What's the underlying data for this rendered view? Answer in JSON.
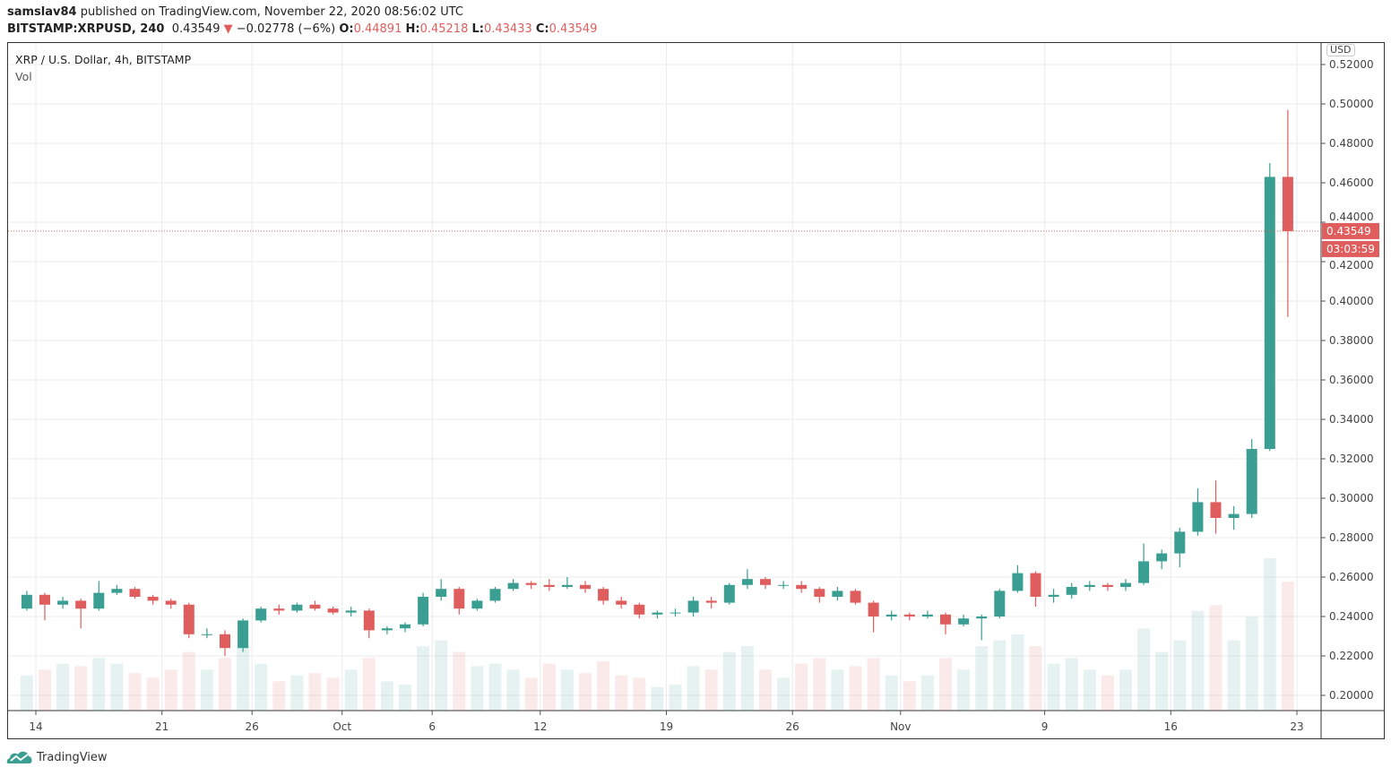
{
  "header": {
    "author": "samslav84",
    "published_text": "published on TradingView.com, November 22, 2020 08:56:02 UTC",
    "symbol": "BITSTAMP:XRPUSD, 240",
    "last": "0.43549",
    "change": "−0.02778 (−6%)",
    "o_label": "O:",
    "o": "0.44891",
    "h_label": "H:",
    "h": "0.45218",
    "l_label": "L:",
    "l": "0.43433",
    "c_label": "C:",
    "c": "0.43549"
  },
  "legend": {
    "title": "XRP / U.S. Dollar, 4h, BITSTAMP",
    "volume_label": "Vol"
  },
  "currency_badge": "USD",
  "current_price_label": "0.43549",
  "countdown_label": "03:03:59",
  "footer": {
    "brand": "TradingView"
  },
  "colors": {
    "up": "#3a9e92",
    "down": "#e05d5d",
    "grid": "#ebebeb"
  },
  "chart_data": {
    "type": "candlestick",
    "interval_shown": "4h",
    "note_resolution": "daily",
    "ylim": [
      0.19,
      0.53
    ],
    "grid": true,
    "price_ticks": [
      "0.20000",
      "0.22000",
      "0.24000",
      "0.26000",
      "0.28000",
      "0.30000",
      "0.32000",
      "0.34000",
      "0.36000",
      "0.38000",
      "0.40000",
      "0.42000",
      "0.44000",
      "0.46000",
      "0.48000",
      "0.50000",
      "0.52000"
    ],
    "time_ticks": [
      {
        "label": "14",
        "date": "2020-09-14"
      },
      {
        "label": "21",
        "date": "2020-09-21"
      },
      {
        "label": "26",
        "date": "2020-09-26"
      },
      {
        "label": "Oct",
        "date": "2020-10-01"
      },
      {
        "label": "6",
        "date": "2020-10-06"
      },
      {
        "label": "12",
        "date": "2020-10-12"
      },
      {
        "label": "19",
        "date": "2020-10-19"
      },
      {
        "label": "26",
        "date": "2020-10-26"
      },
      {
        "label": "Nov",
        "date": "2020-11-01"
      },
      {
        "label": "9",
        "date": "2020-11-09"
      },
      {
        "label": "16",
        "date": "2020-11-16"
      },
      {
        "label": "23",
        "date": "2020-11-23"
      }
    ],
    "start_date": "2020-09-13",
    "ohlcv": [
      [
        0.244,
        0.253,
        0.243,
        0.251,
        30
      ],
      [
        0.251,
        0.252,
        0.238,
        0.246,
        35
      ],
      [
        0.246,
        0.25,
        0.244,
        0.248,
        40
      ],
      [
        0.248,
        0.249,
        0.234,
        0.244,
        38
      ],
      [
        0.244,
        0.258,
        0.243,
        0.252,
        45
      ],
      [
        0.252,
        0.256,
        0.251,
        0.254,
        40
      ],
      [
        0.254,
        0.255,
        0.249,
        0.25,
        32
      ],
      [
        0.25,
        0.251,
        0.246,
        0.248,
        28
      ],
      [
        0.248,
        0.249,
        0.244,
        0.246,
        35
      ],
      [
        0.246,
        0.247,
        0.229,
        0.231,
        50
      ],
      [
        0.231,
        0.234,
        0.229,
        0.231,
        35
      ],
      [
        0.231,
        0.233,
        0.22,
        0.224,
        45
      ],
      [
        0.224,
        0.239,
        0.222,
        0.238,
        55
      ],
      [
        0.238,
        0.245,
        0.237,
        0.244,
        40
      ],
      [
        0.244,
        0.246,
        0.241,
        0.243,
        25
      ],
      [
        0.243,
        0.247,
        0.242,
        0.246,
        30
      ],
      [
        0.246,
        0.248,
        0.243,
        0.244,
        32
      ],
      [
        0.244,
        0.245,
        0.241,
        0.242,
        28
      ],
      [
        0.242,
        0.245,
        0.24,
        0.243,
        35
      ],
      [
        0.243,
        0.244,
        0.229,
        0.233,
        45
      ],
      [
        0.233,
        0.235,
        0.231,
        0.234,
        25
      ],
      [
        0.234,
        0.237,
        0.232,
        0.236,
        22
      ],
      [
        0.236,
        0.252,
        0.235,
        0.25,
        55
      ],
      [
        0.25,
        0.259,
        0.248,
        0.254,
        60
      ],
      [
        0.254,
        0.255,
        0.241,
        0.244,
        50
      ],
      [
        0.244,
        0.249,
        0.243,
        0.248,
        38
      ],
      [
        0.248,
        0.255,
        0.247,
        0.254,
        40
      ],
      [
        0.254,
        0.259,
        0.253,
        0.257,
        35
      ],
      [
        0.257,
        0.258,
        0.254,
        0.256,
        28
      ],
      [
        0.256,
        0.259,
        0.253,
        0.255,
        40
      ],
      [
        0.255,
        0.26,
        0.254,
        0.256,
        35
      ],
      [
        0.256,
        0.258,
        0.252,
        0.254,
        32
      ],
      [
        0.254,
        0.255,
        0.246,
        0.248,
        42
      ],
      [
        0.248,
        0.25,
        0.244,
        0.246,
        30
      ],
      [
        0.246,
        0.247,
        0.239,
        0.241,
        28
      ],
      [
        0.241,
        0.243,
        0.239,
        0.242,
        20
      ],
      [
        0.242,
        0.244,
        0.24,
        0.242,
        22
      ],
      [
        0.242,
        0.25,
        0.24,
        0.248,
        38
      ],
      [
        0.248,
        0.25,
        0.244,
        0.247,
        35
      ],
      [
        0.247,
        0.257,
        0.246,
        0.256,
        50
      ],
      [
        0.256,
        0.264,
        0.254,
        0.259,
        55
      ],
      [
        0.259,
        0.26,
        0.254,
        0.256,
        35
      ],
      [
        0.256,
        0.258,
        0.254,
        0.256,
        28
      ],
      [
        0.256,
        0.258,
        0.252,
        0.254,
        40
      ],
      [
        0.254,
        0.255,
        0.247,
        0.25,
        45
      ],
      [
        0.25,
        0.255,
        0.248,
        0.253,
        35
      ],
      [
        0.253,
        0.254,
        0.246,
        0.247,
        38
      ],
      [
        0.247,
        0.248,
        0.232,
        0.24,
        45
      ],
      [
        0.24,
        0.243,
        0.238,
        0.241,
        30
      ],
      [
        0.241,
        0.242,
        0.238,
        0.24,
        25
      ],
      [
        0.24,
        0.243,
        0.239,
        0.241,
        30
      ],
      [
        0.241,
        0.242,
        0.231,
        0.236,
        45
      ],
      [
        0.236,
        0.241,
        0.235,
        0.239,
        35
      ],
      [
        0.239,
        0.241,
        0.228,
        0.24,
        55
      ],
      [
        0.24,
        0.254,
        0.239,
        0.253,
        60
      ],
      [
        0.253,
        0.266,
        0.252,
        0.262,
        65
      ],
      [
        0.262,
        0.263,
        0.245,
        0.25,
        55
      ],
      [
        0.25,
        0.254,
        0.247,
        0.251,
        40
      ],
      [
        0.251,
        0.257,
        0.249,
        0.255,
        45
      ],
      [
        0.255,
        0.258,
        0.253,
        0.256,
        35
      ],
      [
        0.256,
        0.257,
        0.253,
        0.255,
        30
      ],
      [
        0.255,
        0.259,
        0.253,
        0.257,
        35
      ],
      [
        0.257,
        0.277,
        0.256,
        0.268,
        70
      ],
      [
        0.268,
        0.274,
        0.264,
        0.272,
        50
      ],
      [
        0.272,
        0.285,
        0.265,
        0.283,
        60
      ],
      [
        0.283,
        0.305,
        0.281,
        0.298,
        85
      ],
      [
        0.298,
        0.309,
        0.282,
        0.29,
        90
      ],
      [
        0.29,
        0.296,
        0.284,
        0.292,
        60
      ],
      [
        0.292,
        0.33,
        0.29,
        0.325,
        80
      ],
      [
        0.325,
        0.47,
        0.324,
        0.463,
        130
      ],
      [
        0.463,
        0.497,
        0.392,
        0.43549,
        110
      ]
    ],
    "current_price": 0.43549
  }
}
